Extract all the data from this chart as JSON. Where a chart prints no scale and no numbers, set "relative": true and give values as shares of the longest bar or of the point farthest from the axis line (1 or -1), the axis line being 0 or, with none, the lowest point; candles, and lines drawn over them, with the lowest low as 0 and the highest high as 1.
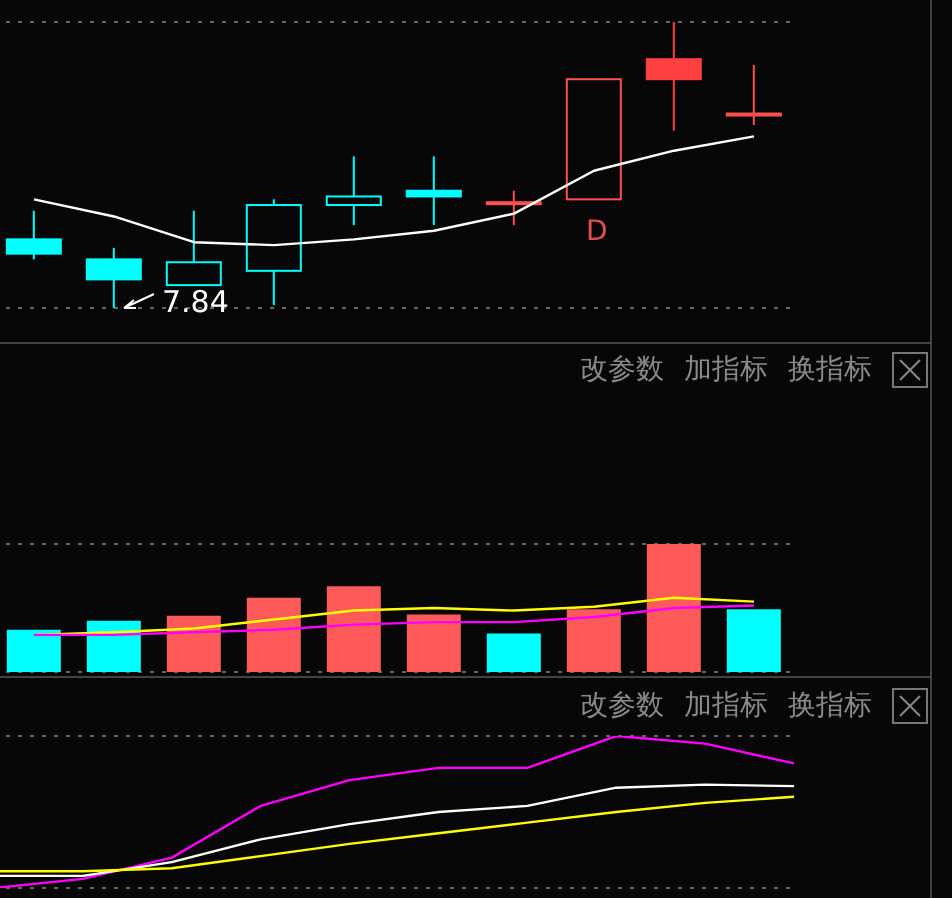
{
  "chart_data": [
    {
      "type": "candlestick",
      "relative": true,
      "grid": "y",
      "categories": [
        null,
        null,
        null,
        null,
        null,
        null,
        null,
        null,
        null,
        null
      ],
      "ohlc": [
        [
          0.24,
          0.34,
          0.17,
          0.19
        ],
        [
          0.17,
          0.21,
          0,
          0.1
        ],
        [
          0.08,
          0.34,
          0.08,
          0.16
        ],
        [
          0.13,
          0.38,
          0.01,
          0.36
        ],
        [
          0.36,
          0.53,
          0.29,
          0.39
        ],
        [
          0.41,
          0.53,
          0.29,
          0.39
        ],
        [
          0.37,
          0.41,
          0.29,
          0.37
        ],
        [
          0.38,
          0.8,
          0.38,
          0.8
        ],
        [
          0.87,
          1,
          0.62,
          0.8
        ],
        [
          0.68,
          0.85,
          0.64,
          0.68
        ]
      ],
      "colors": [
        "#00ffff",
        "#00ffff",
        "#00ffff",
        "#00ffff",
        "#00ffff",
        "#00ffff",
        "#ff5050",
        "#ff5050",
        "#ff4040",
        "#ff5050"
      ],
      "series": [
        {
          "type": "line",
          "color": "#ffffff",
          "values": [
            0.38,
            0.32,
            0.23,
            0.22,
            0.24,
            0.27,
            0.33,
            0.48,
            0.55,
            0.6
          ]
        }
      ],
      "annotations": [
        "D",
        "7.84"
      ]
    },
    {
      "type": "bar",
      "relative": true,
      "grid": "y",
      "categories": [
        null,
        null,
        null,
        null,
        null,
        null,
        null,
        null,
        null,
        null
      ],
      "values": [
        0.33,
        0.4,
        0.44,
        0.58,
        0.67,
        0.45,
        0.3,
        0.49,
        1,
        0.49
      ],
      "colors": [
        "#00ffff",
        "#00ffff",
        "#ff5a5a",
        "#ff5a5a",
        "#ff5a5a",
        "#ff5a5a",
        "#00ffff",
        "#ff5a5a",
        "#ff5a5a",
        "#00ffff"
      ],
      "series": [
        {
          "type": "line",
          "color": "#ffff00",
          "values": [
            0.29,
            0.31,
            0.34,
            0.41,
            0.48,
            0.5,
            0.48,
            0.51,
            0.58,
            0.55
          ]
        },
        {
          "type": "line",
          "color": "#ff00ff",
          "values": [
            0.29,
            0.29,
            0.31,
            0.33,
            0.37,
            0.39,
            0.39,
            0.43,
            0.5,
            0.52
          ]
        }
      ],
      "annotations": [
        "改参数",
        "加指标",
        "换指标"
      ]
    },
    {
      "type": "line",
      "relative": true,
      "grid": "y",
      "categories": [
        null,
        null,
        null,
        null,
        null,
        null,
        null,
        null,
        null,
        null
      ],
      "series": [
        {
          "color": "#ff00ff",
          "values": [
            0,
            0.06,
            0.2,
            0.54,
            0.71,
            0.79,
            0.79,
            1,
            0.95,
            0.82
          ]
        },
        {
          "color": "#ffffff",
          "values": [
            0.08,
            0.08,
            0.17,
            0.32,
            0.42,
            0.5,
            0.54,
            0.66,
            0.68,
            0.67
          ]
        },
        {
          "color": "#ffff00",
          "values": [
            0.11,
            0.11,
            0.13,
            0.21,
            0.29,
            0.36,
            0.43,
            0.5,
            0.56,
            0.6
          ]
        }
      ],
      "annotations": [
        "改参数",
        "加指标",
        "换指标"
      ]
    }
  ]
}
